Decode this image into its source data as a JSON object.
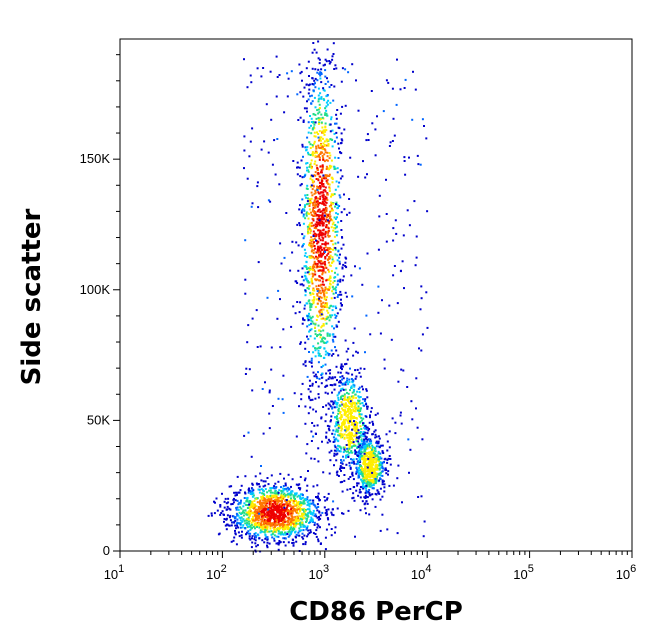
{
  "chart_data": {
    "type": "scatter",
    "title": "",
    "xlabel": "CD86 PerCP",
    "ylabel": "Side scatter",
    "x_scale": "log",
    "xlim": [
      10,
      1000000
    ],
    "ylim": [
      0,
      196000
    ],
    "x_ticks": [
      {
        "value": 10,
        "base": "10",
        "exp": "1"
      },
      {
        "value": 100,
        "base": "10",
        "exp": "2"
      },
      {
        "value": 1000,
        "base": "10",
        "exp": "3"
      },
      {
        "value": 10000,
        "base": "10",
        "exp": "4"
      },
      {
        "value": 100000,
        "base": "10",
        "exp": "5"
      },
      {
        "value": 1000000,
        "base": "10",
        "exp": "6"
      }
    ],
    "y_ticks": [
      {
        "value": 0,
        "label": "0"
      },
      {
        "value": 50000,
        "label": "50K"
      },
      {
        "value": 100000,
        "label": "100K"
      },
      {
        "value": 150000,
        "label": "150K"
      }
    ],
    "grid": false,
    "legend": "none",
    "colormap": [
      "#0000cc",
      "#0066ff",
      "#00ccff",
      "#22dd88",
      "#ffee00",
      "#ff7700",
      "#ee0000"
    ],
    "populations": [
      {
        "x_center": 320,
        "y_center": 15000,
        "x_spread_decades": 0.22,
        "y_spread": 5500,
        "density": "high"
      },
      {
        "x_center": 900,
        "y_center": 125000,
        "x_spread_decades": 0.1,
        "y_spread": 32000,
        "density": "high"
      },
      {
        "x_center": 1700,
        "y_center": 50000,
        "x_spread_decades": 0.1,
        "y_spread": 10000,
        "density": "medium"
      },
      {
        "x_center": 2700,
        "y_center": 33000,
        "x_spread_decades": 0.08,
        "y_spread": 6000,
        "density": "medium"
      }
    ]
  }
}
